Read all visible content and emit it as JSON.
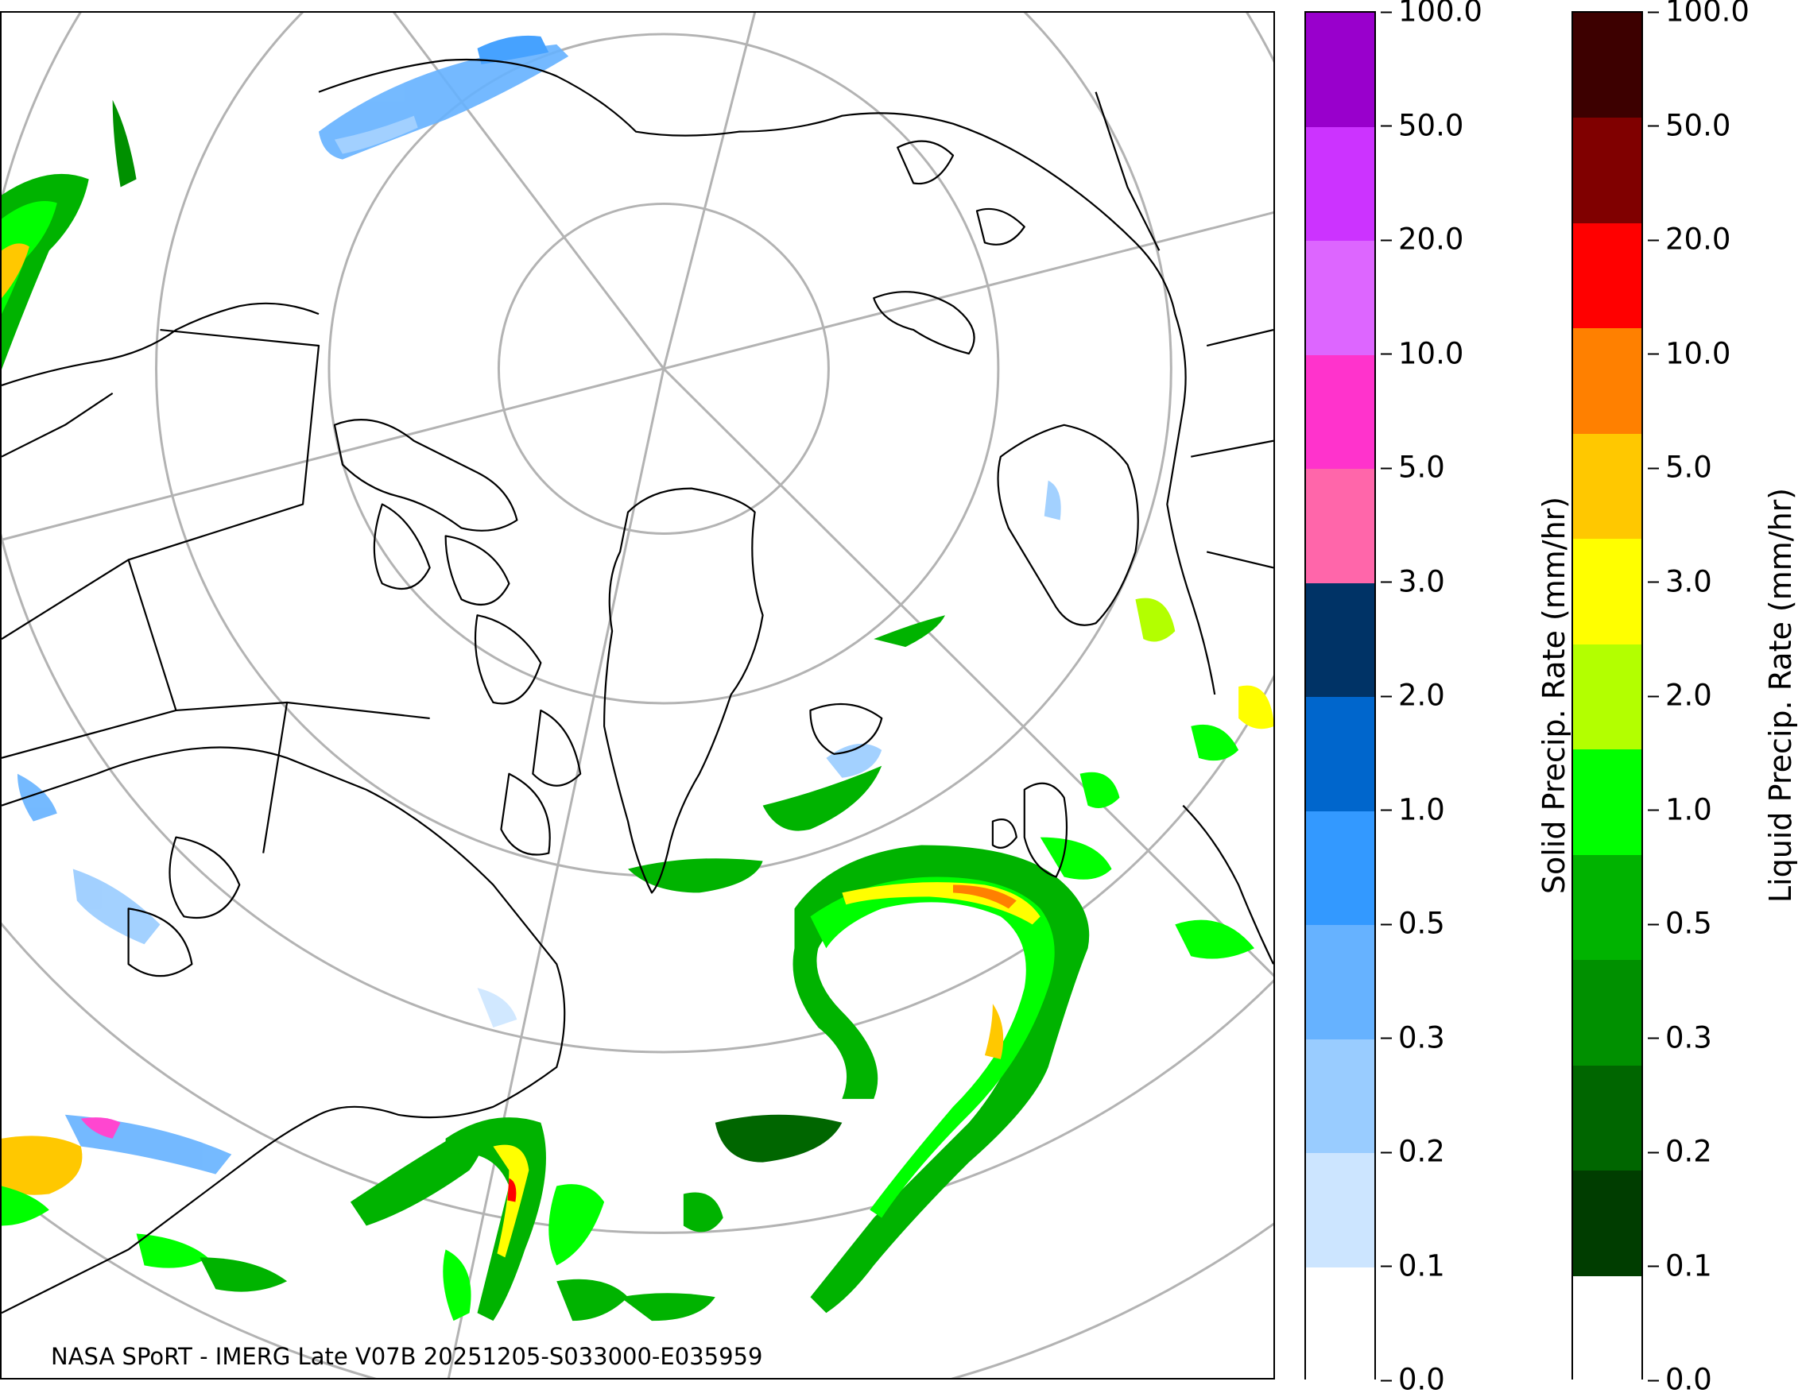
{
  "map": {
    "credit": "NASA SPoRT - IMERG Late V07B 20251205-S033000-E035959",
    "projection": "north polar stereographic",
    "colors": {
      "coastline": "#000000",
      "graticule": "#b3b3b3"
    }
  },
  "legends": {
    "solid": {
      "label": "Solid Precip. Rate (mm/hr)",
      "ticks": [
        "100.0",
        "50.0",
        "20.0",
        "10.0",
        "5.0",
        "3.0",
        "2.0",
        "1.0",
        "0.5",
        "0.3",
        "0.2",
        "0.1",
        "0.0"
      ],
      "colors_top_to_bottom": [
        "#9900cc",
        "#cc33ff",
        "#dd66ff",
        "#ff33cc",
        "#ff66aa",
        "#003366",
        "#0066cc",
        "#3399ff",
        "#66b2ff",
        "#99ccff",
        "#cce5ff",
        "#ffffff"
      ]
    },
    "liquid": {
      "label": "Liquid Precip. Rate (mm/hr)",
      "ticks": [
        "100.0",
        "50.0",
        "20.0",
        "10.0",
        "5.0",
        "3.0",
        "2.0",
        "1.0",
        "0.5",
        "0.3",
        "0.2",
        "0.1",
        "0.0"
      ],
      "colors_top_to_bottom": [
        "#3d0000",
        "#800000",
        "#ff0000",
        "#ff8000",
        "#ffc800",
        "#ffff00",
        "#b3ff00",
        "#00ff00",
        "#00b300",
        "#009000",
        "#006600",
        "#003d00",
        "#ffffff"
      ]
    }
  }
}
